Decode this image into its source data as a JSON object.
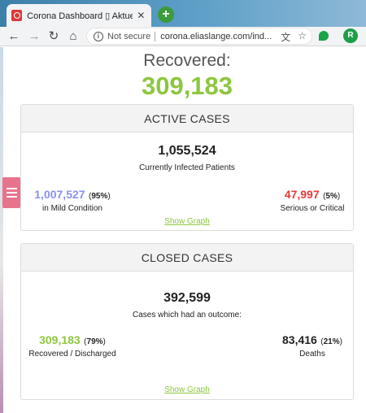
{
  "browser": {
    "tab_title": "Corona Dashboard ▯ Aktuelle Da",
    "tab_close": "✕",
    "new_tab": "+",
    "not_secure": "Not secure",
    "url": "corona.eliaslange.com/ind...",
    "profile_initial": "R",
    "nav": {
      "back": "←",
      "forward": "→",
      "reload": "↻",
      "home": "⌂"
    },
    "icons": {
      "translate": "文",
      "star": "☆"
    }
  },
  "hero": {
    "label": "Recovered:",
    "value": "309,183",
    "color": "#8dc63f"
  },
  "active_cases": {
    "header": "ACTIVE CASES",
    "total": "1,055,524",
    "total_caption": "Currently Infected Patients",
    "mild": {
      "value": "1,007,527",
      "pct": "95%",
      "caption": "in Mild Condition",
      "color": "#8a8ff0"
    },
    "serious": {
      "value": "47,997",
      "pct": "5%",
      "caption": "Serious or Critical",
      "color": "#e83a3a"
    },
    "link": "Show Graph"
  },
  "closed_cases": {
    "header": "CLOSED CASES",
    "total": "392,599",
    "total_caption": "Cases which had an outcome:",
    "recovered": {
      "value": "309,183",
      "pct": "79%",
      "caption": "Recovered / Discharged",
      "color": "#8dc63f"
    },
    "deaths": {
      "value": "83,416",
      "pct": "21%",
      "caption": "Deaths",
      "color": "#222222"
    },
    "link": "Show Graph"
  }
}
